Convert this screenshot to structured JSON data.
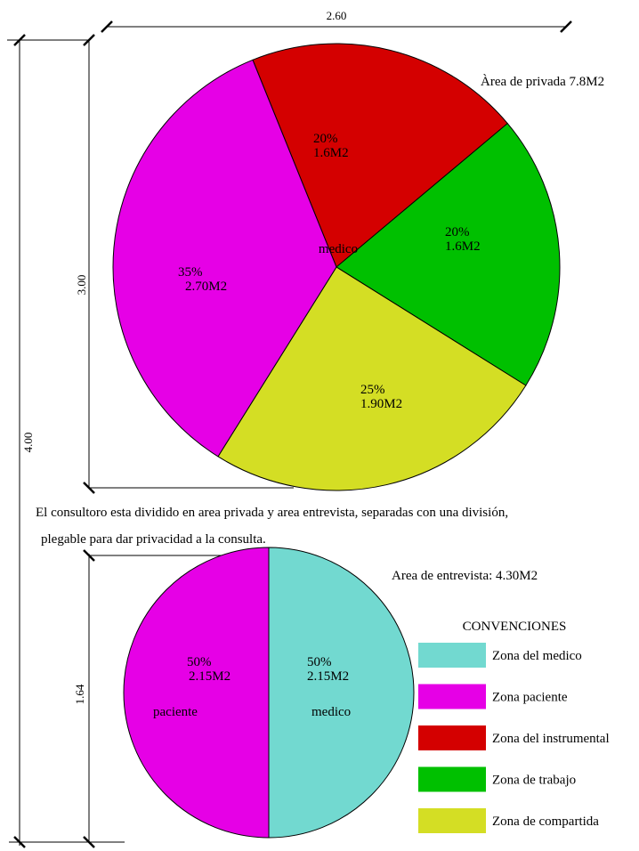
{
  "chart_data": [
    {
      "type": "pie",
      "title": "Àrea de privada 7.8M2",
      "values": [
        20,
        20,
        25,
        35
      ],
      "value_labels": [
        "20%",
        "20%",
        "25%",
        "35%"
      ],
      "areas": [
        "1.6M2",
        "1.6M2",
        "1.90M2",
        "2.70M2"
      ],
      "colors": [
        "#d40000",
        "#00c000",
        "#d4de24",
        "#e600e6"
      ],
      "center_label": "medico"
    },
    {
      "type": "pie",
      "title": "Area de entrevista: 4.30M2",
      "values": [
        50,
        50
      ],
      "value_labels": [
        "50%",
        "50%"
      ],
      "areas": [
        "2.15M2",
        "2.15M2"
      ],
      "colors": [
        "#72d9d0",
        "#e600e6"
      ],
      "slice_names": [
        "medico",
        "paciente"
      ]
    }
  ],
  "dimensions": {
    "top_width": "2.60",
    "private_height": "3.00",
    "total_height": "4.00",
    "interview_height": "1.64"
  },
  "note": [
    "El consultoro esta dividido en area privada y area entrevista, separadas con una división,",
    "plegable para dar privacidad a la consulta."
  ],
  "legend": {
    "title": "CONVENCIONES",
    "items": [
      {
        "label": "Zona del medico",
        "color": "#72d9d0"
      },
      {
        "label": "Zona paciente",
        "color": "#e600e6"
      },
      {
        "label": "Zona del instrumental",
        "color": "#d40000"
      },
      {
        "label": "Zona de trabajo",
        "color": "#00c000"
      },
      {
        "label": "Zona de compartida",
        "color": "#d4de24"
      }
    ]
  }
}
